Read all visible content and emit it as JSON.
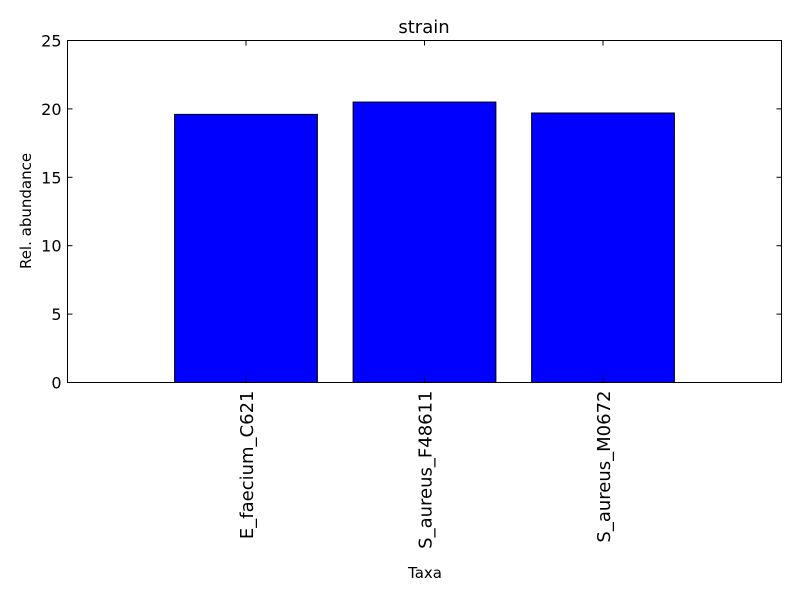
{
  "chart_data": {
    "type": "bar",
    "title": "strain",
    "xlabel": "Taxa",
    "ylabel": "Rel. abundance",
    "categories": [
      "E_faecium_C621",
      "S_aureus_F48611",
      "S_aureus_M0672"
    ],
    "values": [
      19.6,
      20.5,
      19.7
    ],
    "ylim": [
      0,
      25
    ],
    "yticks": [
      0,
      5,
      10,
      15,
      20,
      25
    ],
    "bar_color": "#0000ff",
    "grid": false
  }
}
